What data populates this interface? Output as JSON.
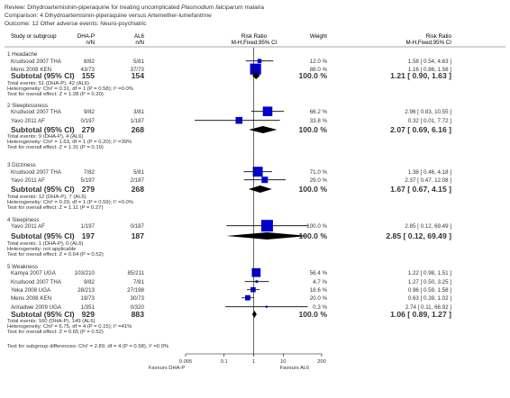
{
  "header": {
    "review_prefix": "Review:",
    "review_plain": "Dihydroartemisinin-piperaquine for treating uncomplicated",
    "review_italic": "Plasmodium falciparum",
    "review_suffix": "malaria",
    "comparison": "Comparison:  4 Dihydroartemisinin-piperaquine versus Artemether-lumefantrine",
    "outcome": "Outcome:  12 Other adverse events: Neuro-psychiatric"
  },
  "columns": {
    "study": "Study or subgroup",
    "exp": "DHA-P",
    "ctrl": "AL6",
    "n_n": "n/N",
    "rr": "Risk Ratio",
    "rr_method": "M-H,Fixed,95% CI",
    "weight": "Weight",
    "rr2": "Risk Ratio",
    "rr2_method": "M-H,Fixed,95% CI"
  },
  "chart_data": {
    "type": "forest",
    "scale": "log",
    "xlim": [
      0.005,
      200
    ],
    "ticks": [
      "0.005",
      "0.1",
      "1",
      "10",
      "200"
    ],
    "favours_left": "Favours DHA-P",
    "favours_right": "Favours AL6",
    "groups": [
      {
        "title": "1 Headache",
        "studies": [
          {
            "name": "Krudsood 2007 THA",
            "exp": "8/82",
            "ctrl": "5/81",
            "weight": "12.0 %",
            "rr_text": "1.58 [ 0.54, 4.63 ]",
            "rr": 1.58,
            "lo": 0.54,
            "hi": 4.63,
            "w": 12.0
          },
          {
            "name": "Mens 2008 KEN",
            "exp": "43/73",
            "ctrl": "37/73",
            "weight": "88.0 %",
            "rr_text": "1.16 [ 0.86, 1.56 ]",
            "rr": 1.16,
            "lo": 0.86,
            "hi": 1.56,
            "w": 88.0
          }
        ],
        "subtotal": {
          "label": "Subtotal (95% CI)",
          "exp": "155",
          "ctrl": "154",
          "weight": "100.0 %",
          "rr_text": "1.21 [ 0.90, 1.63 ]",
          "rr": 1.21,
          "lo": 0.9,
          "hi": 1.63
        },
        "notes": [
          "Total events: 51 (DHA-P), 42 (AL6)",
          "Heterogeneity: Chi² = 0.31, df = 1 (P = 0.58); I² =0.0%",
          "Test for overall effect: Z = 1.28 (P = 0.20)"
        ]
      },
      {
        "title": "2 Sleeplessness",
        "studies": [
          {
            "name": "Krudsood 2007 THA",
            "exp": "9/82",
            "ctrl": "3/81",
            "weight": "66.2 %",
            "rr_text": "2.96 [ 0.83, 10.55 ]",
            "rr": 2.96,
            "lo": 0.83,
            "hi": 10.55,
            "w": 66.2
          },
          {
            "name": "Yavo 2011 AF",
            "exp": "0/197",
            "ctrl": "1/187",
            "weight": "33.8 %",
            "rr_text": "0.32 [ 0.01, 7.72 ]",
            "rr": 0.32,
            "lo": 0.01,
            "hi": 7.72,
            "w": 33.8
          }
        ],
        "subtotal": {
          "label": "Subtotal (95% CI)",
          "exp": "279",
          "ctrl": "268",
          "weight": "100.0 %",
          "rr_text": "2.07 [ 0.69, 6.16 ]",
          "rr": 2.07,
          "lo": 0.69,
          "hi": 6.16
        },
        "notes": [
          "Total events: 9 (DHA-P), 4 (AL6)",
          "Heterogeneity: Chi² = 1.63, df = 1 (P = 0.20); I² =39%",
          "Test for overall effect: Z = 1.31 (P = 0.19)"
        ]
      },
      {
        "title": "3 Dizziness",
        "studies": [
          {
            "name": "Krudsood 2007 THA",
            "exp": "7/82",
            "ctrl": "5/81",
            "weight": "71.0 %",
            "rr_text": "1.38 [ 0.46, 4.18 ]",
            "rr": 1.38,
            "lo": 0.46,
            "hi": 4.18,
            "w": 71.0
          },
          {
            "name": "Yavo 2011 AF",
            "exp": "5/197",
            "ctrl": "2/187",
            "weight": "29.0 %",
            "rr_text": "2.37 [ 0.47, 12.08 ]",
            "rr": 2.37,
            "lo": 0.47,
            "hi": 12.08,
            "w": 29.0
          }
        ],
        "subtotal": {
          "label": "Subtotal (95% CI)",
          "exp": "279",
          "ctrl": "268",
          "weight": "100.0 %",
          "rr_text": "1.67 [ 0.67, 4.15 ]",
          "rr": 1.67,
          "lo": 0.67,
          "hi": 4.15
        },
        "notes": [
          "Total events: 12 (DHA-P), 7 (AL6)",
          "Heterogeneity: Chi² = 0.29, df = 1 (P = 0.59); I² =0.0%",
          "Test for overall effect: Z = 1.11 (P = 0.27)"
        ]
      },
      {
        "title": "4 Sleepiness",
        "studies": [
          {
            "name": "Yavo 2011 AF",
            "exp": "1/197",
            "ctrl": "0/187",
            "weight": "100.0 %",
            "rr_text": "2.85 [ 0.12, 69.49 ]",
            "rr": 2.85,
            "lo": 0.12,
            "hi": 69.49,
            "w": 100.0
          }
        ],
        "subtotal": {
          "label": "Subtotal (95% CI)",
          "exp": "197",
          "ctrl": "187",
          "weight": "100.0 %",
          "rr_text": "2.85 [ 0.12, 69.49 ]",
          "rr": 2.85,
          "lo": 0.12,
          "hi": 69.49
        },
        "notes": [
          "Total events: 1 (DHA-P), 0 (AL6)",
          "Heterogeneity: not applicable",
          "Test for overall effect: Z = 0.64 (P = 0.52)"
        ]
      },
      {
        "title": "5 Weakness",
        "studies": [
          {
            "name": "Kamya 2007 UGA",
            "exp": "103/210",
            "ctrl": "85/211",
            "weight": "56.4 %",
            "rr_text": "1.22 [ 0.98, 1.51 ]",
            "rr": 1.22,
            "lo": 0.98,
            "hi": 1.51,
            "w": 56.4
          },
          {
            "name": "Krudsood 2007 THA",
            "exp": "9/82",
            "ctrl": "7/81",
            "weight": "4.7 %",
            "rr_text": "1.27 [ 0.50, 3.25 ]",
            "rr": 1.27,
            "lo": 0.5,
            "hi": 3.25,
            "w": 4.7
          },
          {
            "name": "Yeka 2008 UGA",
            "exp": "28/213",
            "ctrl": "27/198",
            "weight": "18.6 %",
            "rr_text": "0.96 [ 0.59, 1.58 ]",
            "rr": 0.96,
            "lo": 0.59,
            "hi": 1.58,
            "w": 18.6
          },
          {
            "name": "Mens 2008 KEN",
            "exp": "19/73",
            "ctrl": "30/73",
            "weight": "20.0 %",
            "rr_text": "0.63 [ 0.39, 1.02 ]",
            "rr": 0.63,
            "lo": 0.39,
            "hi": 1.02,
            "w": 20.0
          },
          {
            "name": "Arinaitwe 2009 UGA",
            "exp": "1/351",
            "ctrl": "0/320",
            "weight": "0.3 %",
            "rr_text": "2.74 [ 0.11, 66.92 ]",
            "rr": 2.74,
            "lo": 0.11,
            "hi": 66.92,
            "w": 0.3
          }
        ],
        "subtotal": {
          "label": "Subtotal (95% CI)",
          "exp": "929",
          "ctrl": "883",
          "weight": "100.0 %",
          "rr_text": "1.06 [ 0.89, 1.27 ]",
          "rr": 1.06,
          "lo": 0.89,
          "hi": 1.27
        },
        "notes": [
          "Total events: 160 (DHA-P), 149 (AL6)",
          "Heterogeneity: Chi² = 6.75, df = 4 (P = 0.15); I² =41%",
          "Test for overall effect: Z = 0.65 (P = 0.52)"
        ]
      }
    ],
    "subgroup_test": "Test for subgroup differences: Chi² = 2.89, df = 4 (P = 0.58), I² =0.0%"
  }
}
